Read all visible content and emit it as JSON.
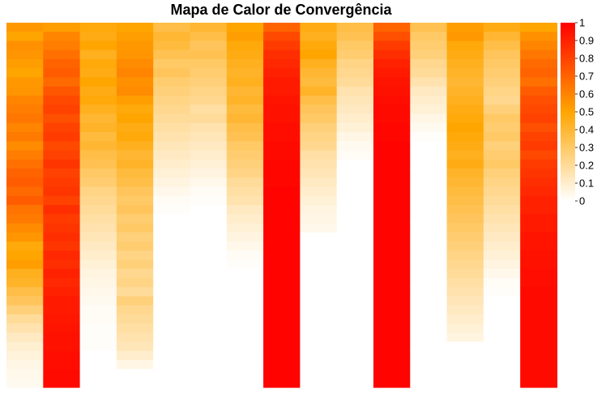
{
  "chart_data": {
    "type": "heatmap",
    "title": "Mapa de Calor de Convergência",
    "xlabel": "",
    "ylabel": "",
    "rows": 40,
    "columns": [
      {
        "values": [
          0.54,
          0.5,
          0.56,
          0.55,
          0.52,
          0.5,
          0.54,
          0.55,
          0.6,
          0.62,
          0.64,
          0.6,
          0.63,
          0.58,
          0.62,
          0.66,
          0.7,
          0.72,
          0.68,
          0.72,
          0.65,
          0.63,
          0.58,
          0.55,
          0.48,
          0.5,
          0.52,
          0.44,
          0.42,
          0.36,
          0.32,
          0.26,
          0.2,
          0.16,
          0.12,
          0.09,
          0.07,
          0.05,
          0.04,
          0.03
        ]
      },
      {
        "values": [
          0.52,
          0.6,
          0.62,
          0.66,
          0.7,
          0.72,
          0.68,
          0.74,
          0.78,
          0.8,
          0.76,
          0.8,
          0.82,
          0.78,
          0.8,
          0.84,
          0.8,
          0.82,
          0.84,
          0.8,
          0.86,
          0.82,
          0.84,
          0.86,
          0.84,
          0.88,
          0.86,
          0.9,
          0.88,
          0.9,
          0.92,
          0.92,
          0.93,
          0.94,
          0.95,
          0.95,
          0.96,
          0.96,
          0.97,
          0.97
        ]
      },
      {
        "values": [
          0.48,
          0.46,
          0.5,
          0.44,
          0.48,
          0.46,
          0.5,
          0.46,
          0.48,
          0.44,
          0.4,
          0.42,
          0.38,
          0.4,
          0.36,
          0.34,
          0.3,
          0.28,
          0.24,
          0.22,
          0.2,
          0.18,
          0.16,
          0.14,
          0.12,
          0.1,
          0.08,
          0.06,
          0.05,
          0.04,
          0.03,
          0.02,
          0.02,
          0.01,
          0.01,
          0.01,
          0.0,
          0.0,
          0.0,
          0.0
        ]
      },
      {
        "values": [
          0.5,
          0.52,
          0.54,
          0.55,
          0.58,
          0.6,
          0.56,
          0.58,
          0.52,
          0.48,
          0.5,
          0.46,
          0.48,
          0.44,
          0.4,
          0.42,
          0.38,
          0.36,
          0.32,
          0.3,
          0.32,
          0.28,
          0.3,
          0.26,
          0.28,
          0.24,
          0.26,
          0.22,
          0.24,
          0.2,
          0.26,
          0.22,
          0.2,
          0.18,
          0.16,
          0.14,
          0.1,
          0.05,
          0.0,
          0.0
        ]
      },
      {
        "values": [
          0.36,
          0.4,
          0.38,
          0.34,
          0.3,
          0.32,
          0.28,
          0.26,
          0.24,
          0.22,
          0.2,
          0.18,
          0.16,
          0.14,
          0.12,
          0.1,
          0.08,
          0.06,
          0.04,
          0.02,
          0.01,
          0.0,
          0.0,
          0.0,
          0.0,
          0.0,
          0.0,
          0.0,
          0.0,
          0.0,
          0.0,
          0.0,
          0.0,
          0.0,
          0.0,
          0.0,
          0.0,
          0.0,
          0.0,
          0.0
        ]
      },
      {
        "values": [
          0.4,
          0.36,
          0.32,
          0.34,
          0.3,
          0.28,
          0.26,
          0.24,
          0.22,
          0.18,
          0.2,
          0.16,
          0.14,
          0.12,
          0.1,
          0.08,
          0.06,
          0.04,
          0.02,
          0.01,
          0.0,
          0.0,
          0.0,
          0.0,
          0.0,
          0.0,
          0.0,
          0.0,
          0.0,
          0.0,
          0.0,
          0.0,
          0.0,
          0.0,
          0.0,
          0.0,
          0.0,
          0.0,
          0.0,
          0.0
        ]
      },
      {
        "values": [
          0.5,
          0.52,
          0.48,
          0.46,
          0.44,
          0.42,
          0.44,
          0.4,
          0.42,
          0.38,
          0.4,
          0.36,
          0.34,
          0.3,
          0.28,
          0.26,
          0.24,
          0.2,
          0.18,
          0.16,
          0.12,
          0.1,
          0.08,
          0.06,
          0.04,
          0.02,
          0.01,
          0.0,
          0.0,
          0.0,
          0.0,
          0.0,
          0.0,
          0.0,
          0.0,
          0.0,
          0.0,
          0.0,
          0.0,
          0.0
        ]
      },
      {
        "values": [
          0.7,
          0.78,
          0.82,
          0.86,
          0.88,
          0.9,
          0.92,
          0.92,
          0.94,
          0.95,
          0.95,
          0.96,
          0.96,
          0.97,
          0.97,
          0.98,
          0.98,
          0.98,
          0.99,
          0.99,
          0.99,
          0.99,
          0.99,
          0.99,
          0.99,
          0.99,
          0.99,
          0.99,
          0.99,
          0.99,
          0.99,
          0.99,
          0.99,
          0.99,
          0.99,
          0.99,
          0.99,
          0.99,
          0.99,
          0.99
        ]
      },
      {
        "values": [
          0.46,
          0.44,
          0.48,
          0.5,
          0.44,
          0.4,
          0.38,
          0.42,
          0.36,
          0.32,
          0.3,
          0.26,
          0.24,
          0.22,
          0.18,
          0.16,
          0.14,
          0.12,
          0.1,
          0.08,
          0.06,
          0.05,
          0.04,
          0.0,
          0.0,
          0.0,
          0.0,
          0.0,
          0.0,
          0.0,
          0.0,
          0.0,
          0.0,
          0.0,
          0.0,
          0.0,
          0.0,
          0.0,
          0.0,
          0.0
        ]
      },
      {
        "values": [
          0.36,
          0.34,
          0.3,
          0.28,
          0.24,
          0.22,
          0.2,
          0.16,
          0.14,
          0.12,
          0.1,
          0.08,
          0.05,
          0.03,
          0.02,
          0.0,
          0.0,
          0.0,
          0.0,
          0.0,
          0.0,
          0.0,
          0.0,
          0.0,
          0.0,
          0.0,
          0.0,
          0.0,
          0.0,
          0.0,
          0.0,
          0.0,
          0.0,
          0.0,
          0.0,
          0.0,
          0.0,
          0.0,
          0.0,
          0.0
        ]
      },
      {
        "values": [
          0.7,
          0.76,
          0.82,
          0.86,
          0.9,
          0.92,
          0.94,
          0.95,
          0.96,
          0.97,
          0.97,
          0.98,
          0.98,
          0.99,
          0.99,
          0.99,
          0.99,
          0.99,
          0.99,
          0.99,
          0.99,
          0.99,
          0.99,
          0.99,
          0.99,
          0.99,
          0.99,
          0.99,
          0.99,
          0.99,
          0.99,
          0.99,
          0.99,
          0.99,
          0.99,
          0.99,
          0.99,
          0.99,
          0.99,
          0.99
        ]
      },
      {
        "values": [
          0.34,
          0.3,
          0.28,
          0.26,
          0.22,
          0.2,
          0.16,
          0.12,
          0.1,
          0.08,
          0.05,
          0.03,
          0.01,
          0.0,
          0.0,
          0.0,
          0.0,
          0.0,
          0.0,
          0.0,
          0.0,
          0.0,
          0.0,
          0.0,
          0.0,
          0.0,
          0.0,
          0.0,
          0.0,
          0.0,
          0.0,
          0.0,
          0.0,
          0.0,
          0.0,
          0.0,
          0.0,
          0.0,
          0.0,
          0.0
        ]
      },
      {
        "values": [
          0.52,
          0.54,
          0.48,
          0.46,
          0.44,
          0.42,
          0.4,
          0.42,
          0.44,
          0.46,
          0.48,
          0.5,
          0.48,
          0.46,
          0.44,
          0.46,
          0.42,
          0.4,
          0.38,
          0.36,
          0.34,
          0.32,
          0.3,
          0.28,
          0.26,
          0.24,
          0.22,
          0.2,
          0.18,
          0.16,
          0.14,
          0.12,
          0.1,
          0.08,
          0.06,
          0.0,
          0.0,
          0.0,
          0.0,
          0.0
        ]
      },
      {
        "values": [
          0.46,
          0.4,
          0.36,
          0.32,
          0.3,
          0.28,
          0.26,
          0.24,
          0.22,
          0.26,
          0.3,
          0.28,
          0.3,
          0.26,
          0.28,
          0.3,
          0.26,
          0.24,
          0.22,
          0.2,
          0.18,
          0.16,
          0.14,
          0.12,
          0.1,
          0.08,
          0.06,
          0.04,
          0.02,
          0.01,
          0.0,
          0.0,
          0.0,
          0.0,
          0.0,
          0.0,
          0.0,
          0.0,
          0.0,
          0.0
        ]
      },
      {
        "values": [
          0.5,
          0.56,
          0.6,
          0.64,
          0.68,
          0.7,
          0.66,
          0.72,
          0.76,
          0.78,
          0.8,
          0.76,
          0.8,
          0.82,
          0.78,
          0.82,
          0.84,
          0.86,
          0.88,
          0.9,
          0.9,
          0.92,
          0.92,
          0.94,
          0.94,
          0.95,
          0.95,
          0.96,
          0.96,
          0.97,
          0.97,
          0.97,
          0.97,
          0.97,
          0.97,
          0.97,
          0.97,
          0.97,
          0.97,
          0.97
        ]
      }
    ],
    "colorbar": {
      "min": 0,
      "max": 1,
      "ticks": [
        "0",
        "0.1",
        "0.2",
        "0.3",
        "0.4",
        "0.5",
        "0.6",
        "0.7",
        "0.8",
        "0.9",
        "1"
      ],
      "colors": [
        "#ffffff",
        "#ffa500",
        "#ff0000"
      ]
    },
    "grid": false,
    "legend_position": "right"
  }
}
